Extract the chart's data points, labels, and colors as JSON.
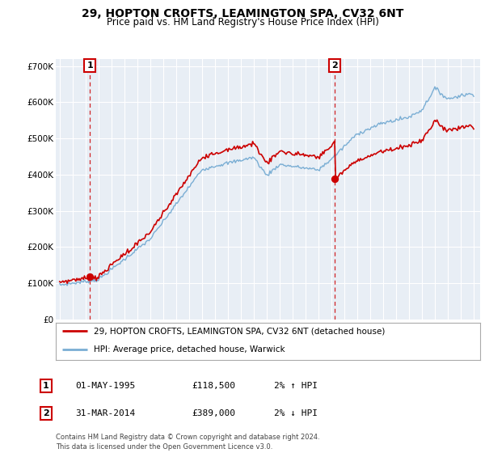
{
  "title": "29, HOPTON CROFTS, LEAMINGTON SPA, CV32 6NT",
  "subtitle": "Price paid vs. HM Land Registry's House Price Index (HPI)",
  "legend_line1": "29, HOPTON CROFTS, LEAMINGTON SPA, CV32 6NT (detached house)",
  "legend_line2": "HPI: Average price, detached house, Warwick",
  "annotation1_label": "1",
  "annotation1_date": "01-MAY-1995",
  "annotation1_price": "£118,500",
  "annotation1_hpi": "2% ↑ HPI",
  "annotation2_label": "2",
  "annotation2_date": "31-MAR-2014",
  "annotation2_price": "£389,000",
  "annotation2_hpi": "2% ↓ HPI",
  "footer": "Contains HM Land Registry data © Crown copyright and database right 2024.\nThis data is licensed under the Open Government Licence v3.0.",
  "sale1_year": 1995.33,
  "sale1_value": 118500,
  "sale2_year": 2014.25,
  "sale2_value": 389000,
  "hpi_color": "#7aaed4",
  "price_color": "#cc0000",
  "bg_color": "#e8eef5",
  "grid_color": "#ffffff",
  "ylim_max": 720000,
  "yticks": [
    0,
    100000,
    200000,
    300000,
    400000,
    500000,
    600000,
    700000
  ],
  "xstart": 1993,
  "xend": 2025,
  "title_fontsize": 10,
  "subtitle_fontsize": 8.5
}
